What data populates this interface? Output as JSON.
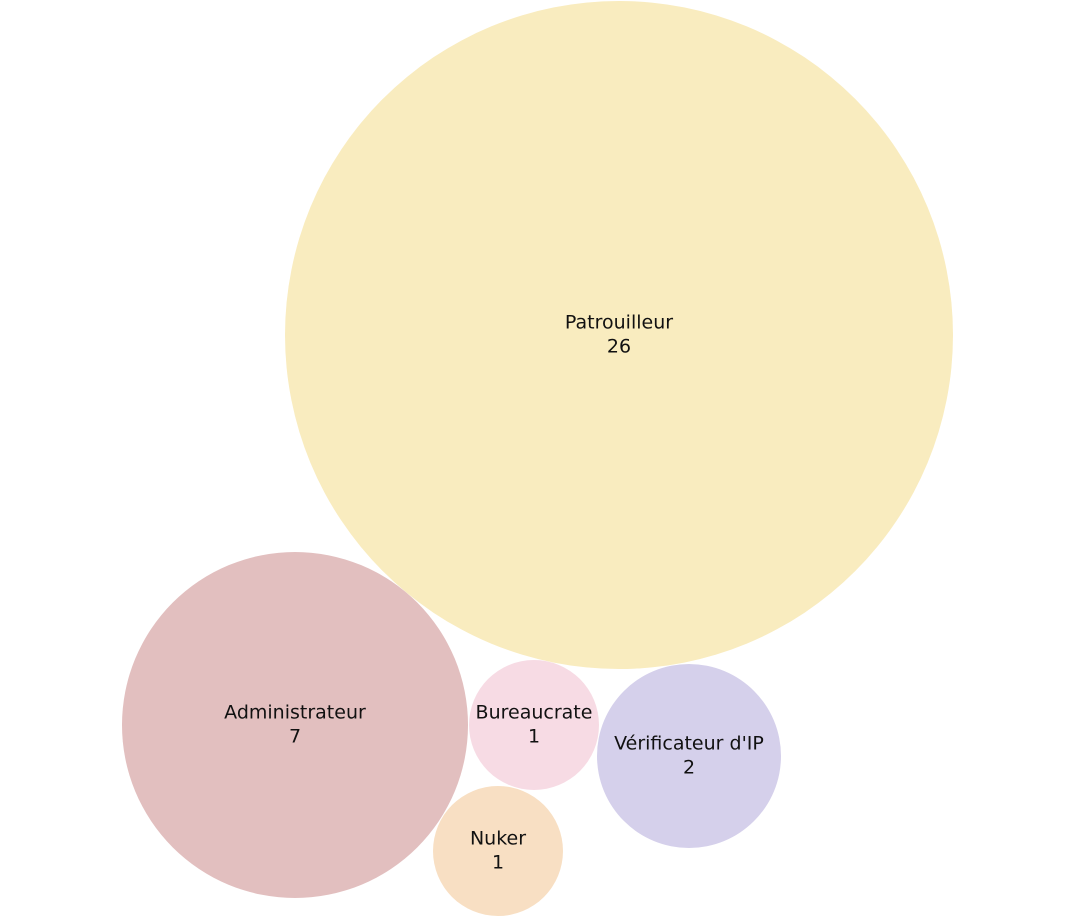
{
  "chart_data": {
    "type": "bubble",
    "grid": false,
    "legend": "none",
    "items": [
      {
        "name": "Patrouilleur",
        "value": 26,
        "color": "#f9ecbf"
      },
      {
        "name": "Administrateur",
        "value": 7,
        "color": "#e2bfbf"
      },
      {
        "name": "Bureaucrate",
        "value": 1,
        "color": "#f7dbe4"
      },
      {
        "name": "Vérificateur d'IP",
        "value": 2,
        "color": "#d5d0eb"
      },
      {
        "name": "Nuker",
        "value": 1,
        "color": "#f8dfc3"
      }
    ]
  }
}
